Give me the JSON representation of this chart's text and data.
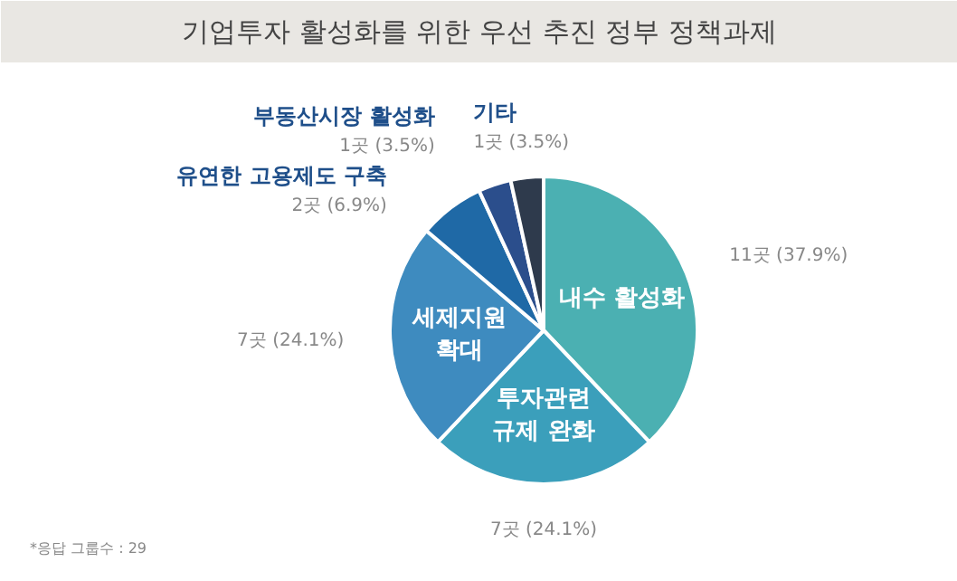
{
  "chart_data": {
    "type": "pie",
    "title": "기업투자 활성화를 위한 우선 추진 정부 정책과제",
    "categories": [
      "내수 활성화",
      "투자관련\n규제 완화",
      "세제지원\n확대",
      "유연한 고용제도 구축",
      "부동산시장 활성화",
      "기타"
    ],
    "values": [
      11,
      7,
      7,
      2,
      1,
      1
    ],
    "value_labels": [
      "11곳 (37.9%)",
      "7곳 (24.1%)",
      "7곳 (24.1%)",
      "2곳 (6.9%)",
      "1곳 (3.5%)",
      "1곳 (3.5%)"
    ],
    "colors": [
      "#4bb0b2",
      "#3b9fbb",
      "#3e8bbf",
      "#1f69a6",
      "#2b4e8c",
      "#2e3a4c"
    ],
    "annotations": [
      "*응답 그룹수 : 29"
    ]
  }
}
